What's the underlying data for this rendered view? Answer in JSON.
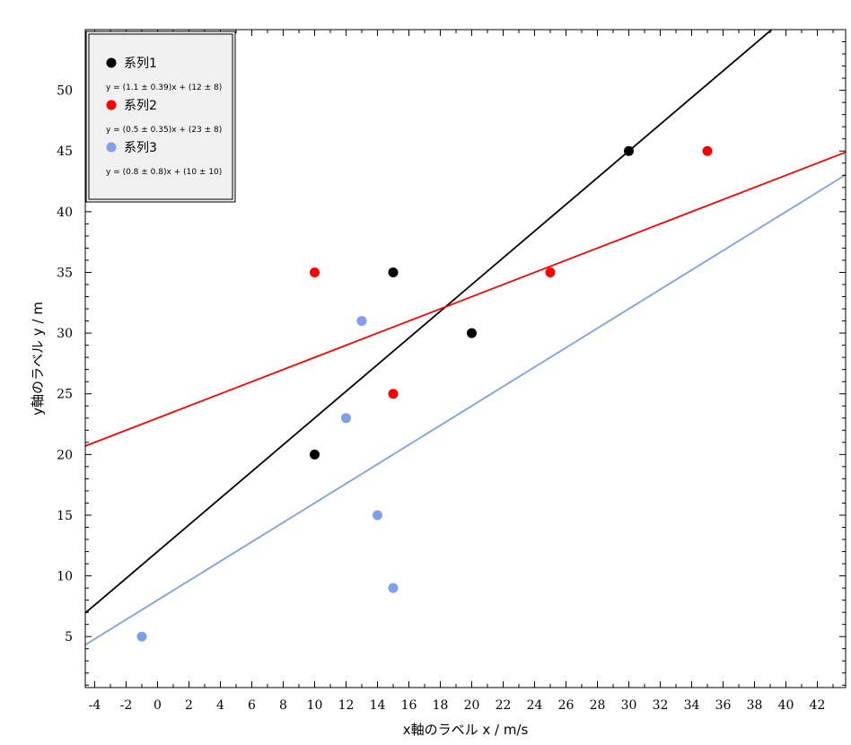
{
  "chart_data": {
    "type": "scatter",
    "xlabel": "x軸のラベル x / m/s",
    "ylabel": "y軸のラベル y / m",
    "xlim": [
      -4.6,
      43.8
    ],
    "ylim": [
      0.8,
      55
    ],
    "xticks": [
      -4,
      -2,
      0,
      2,
      4,
      6,
      8,
      10,
      12,
      14,
      16,
      18,
      20,
      22,
      24,
      26,
      28,
      30,
      32,
      34,
      36,
      38,
      40,
      42
    ],
    "yticks": [
      5,
      10,
      15,
      20,
      25,
      30,
      35,
      40,
      45,
      50
    ],
    "grid": false,
    "legend_position": "top-left",
    "series": [
      {
        "name": "系列1",
        "color": "#000000",
        "points": [
          [
            10,
            20
          ],
          [
            15,
            35
          ],
          [
            20,
            30
          ],
          [
            30,
            45
          ]
        ],
        "fit": {
          "slope": 1.1,
          "intercept": 12,
          "label": "y = (1.1 ± 0.39)x + (12 ± 8)"
        }
      },
      {
        "name": "系列2",
        "color": "#ff0000",
        "points": [
          [
            10,
            35
          ],
          [
            15,
            25
          ],
          [
            25,
            35
          ],
          [
            35,
            45
          ]
        ],
        "fit": {
          "slope": 0.5,
          "intercept": 23,
          "label": "y = (0.5 ± 0.35)x + (23 ± 8)"
        }
      },
      {
        "name": "系列3",
        "color": "#7f9fe6",
        "points": [
          [
            -1,
            5
          ],
          [
            12,
            23
          ],
          [
            13,
            31
          ],
          [
            14,
            15
          ],
          [
            15,
            9
          ]
        ],
        "fit": {
          "slope": 0.8,
          "intercept": 8,
          "label": "y = (0.8 ± 0.8)x + (10 ± 10)"
        }
      }
    ]
  }
}
